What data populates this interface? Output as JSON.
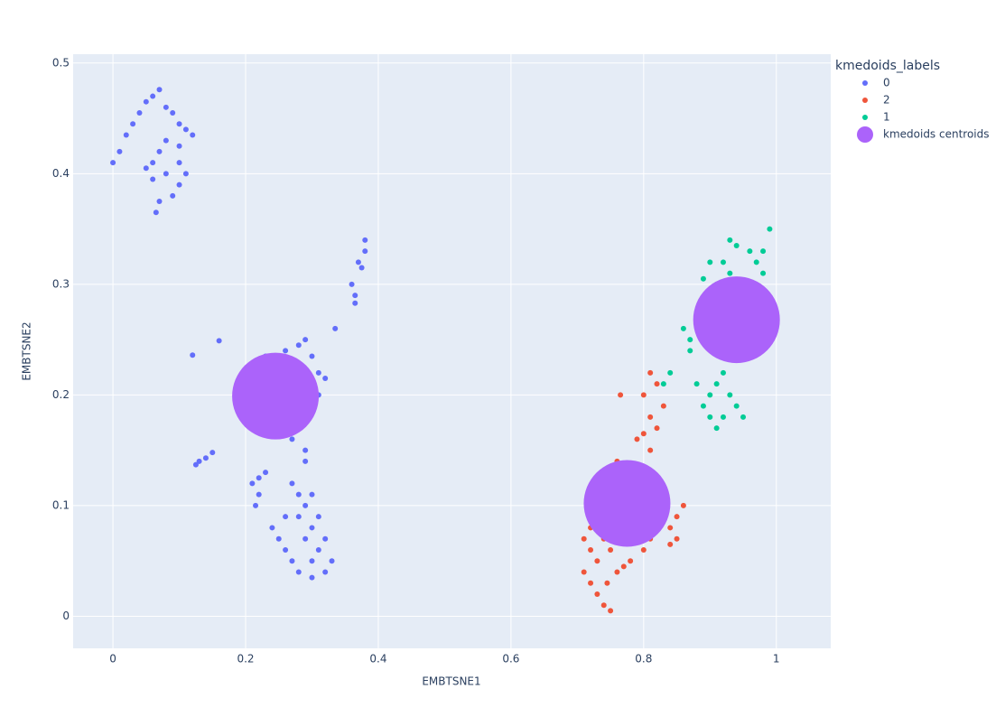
{
  "chart_data": {
    "type": "scatter",
    "xlabel": "EMBTSNE1",
    "ylabel": "EMBTSNE2",
    "legend_title": "kmedoids_labels",
    "legend": "right",
    "grid": true,
    "xlim": [
      -0.06,
      1.082
    ],
    "ylim": [
      -0.029,
      0.508
    ],
    "xticks": [
      0,
      0.2,
      0.4,
      0.6,
      0.8,
      1
    ],
    "yticks": [
      0,
      0.1,
      0.2,
      0.3,
      0.4,
      0.5
    ],
    "series": [
      {
        "name": "0",
        "color": "#636efa",
        "x": [
          0.0,
          0.01,
          0.02,
          0.03,
          0.04,
          0.05,
          0.06,
          0.07,
          0.08,
          0.09,
          0.1,
          0.11,
          0.12,
          0.1,
          0.08,
          0.07,
          0.06,
          0.05,
          0.06,
          0.08,
          0.1,
          0.11,
          0.1,
          0.09,
          0.07,
          0.065,
          0.37,
          0.38,
          0.38,
          0.375,
          0.36,
          0.365,
          0.365,
          0.335,
          0.12,
          0.16,
          0.19,
          0.2,
          0.21,
          0.205,
          0.22,
          0.23,
          0.24,
          0.23,
          0.25,
          0.26,
          0.28,
          0.29,
          0.3,
          0.31,
          0.32,
          0.31,
          0.3,
          0.29,
          0.28,
          0.27,
          0.26,
          0.28,
          0.3,
          0.29,
          0.29,
          0.13,
          0.14,
          0.15,
          0.125,
          0.21,
          0.22,
          0.23,
          0.215,
          0.22,
          0.27,
          0.28,
          0.29,
          0.3,
          0.31,
          0.24,
          0.25,
          0.26,
          0.27,
          0.28,
          0.3,
          0.32,
          0.33,
          0.31,
          0.29,
          0.3,
          0.28,
          0.32,
          0.26,
          0.3
        ],
        "y": [
          0.41,
          0.42,
          0.435,
          0.445,
          0.455,
          0.465,
          0.47,
          0.476,
          0.46,
          0.455,
          0.445,
          0.44,
          0.435,
          0.425,
          0.43,
          0.42,
          0.41,
          0.405,
          0.395,
          0.4,
          0.41,
          0.4,
          0.39,
          0.38,
          0.375,
          0.365,
          0.32,
          0.33,
          0.34,
          0.315,
          0.3,
          0.29,
          0.283,
          0.26,
          0.236,
          0.249,
          0.19,
          0.185,
          0.18,
          0.175,
          0.2,
          0.21,
          0.22,
          0.235,
          0.23,
          0.24,
          0.245,
          0.25,
          0.235,
          0.22,
          0.215,
          0.2,
          0.19,
          0.18,
          0.17,
          0.16,
          0.2,
          0.21,
          0.21,
          0.15,
          0.14,
          0.14,
          0.143,
          0.148,
          0.137,
          0.12,
          0.125,
          0.13,
          0.1,
          0.11,
          0.12,
          0.11,
          0.1,
          0.11,
          0.09,
          0.08,
          0.07,
          0.06,
          0.05,
          0.04,
          0.035,
          0.04,
          0.05,
          0.06,
          0.07,
          0.08,
          0.09,
          0.07,
          0.09,
          0.05
        ]
      },
      {
        "name": "2",
        "color": "#ef553b",
        "x": [
          0.81,
          0.82,
          0.8,
          0.83,
          0.81,
          0.82,
          0.8,
          0.79,
          0.81,
          0.765,
          0.76,
          0.75,
          0.74,
          0.76,
          0.77,
          0.75,
          0.73,
          0.72,
          0.71,
          0.72,
          0.71,
          0.72,
          0.73,
          0.74,
          0.75,
          0.745,
          0.76,
          0.73,
          0.75,
          0.74,
          0.8,
          0.81,
          0.82,
          0.8,
          0.81,
          0.79,
          0.78,
          0.77,
          0.84,
          0.85,
          0.86,
          0.85,
          0.84,
          0.83,
          0.82
        ],
        "y": [
          0.22,
          0.21,
          0.2,
          0.19,
          0.18,
          0.17,
          0.165,
          0.16,
          0.15,
          0.2,
          0.14,
          0.13,
          0.12,
          0.11,
          0.12,
          0.1,
          0.09,
          0.08,
          0.07,
          0.06,
          0.04,
          0.03,
          0.02,
          0.01,
          0.005,
          0.03,
          0.04,
          0.05,
          0.06,
          0.07,
          0.06,
          0.07,
          0.08,
          0.09,
          0.1,
          0.11,
          0.05,
          0.045,
          0.08,
          0.09,
          0.1,
          0.07,
          0.065,
          0.11,
          0.12
        ]
      },
      {
        "name": "1",
        "color": "#00cc96",
        "x": [
          0.84,
          0.83,
          0.9,
          0.91,
          0.92,
          0.93,
          0.9,
          0.91,
          0.92,
          0.94,
          0.95,
          0.89,
          0.88,
          0.87,
          0.86,
          0.87,
          0.9,
          0.91,
          0.92,
          0.93,
          0.94,
          0.96,
          0.97,
          0.98,
          0.99,
          0.98,
          0.97,
          0.96,
          0.95,
          0.94,
          0.93,
          0.92,
          0.95,
          0.93,
          0.91,
          0.9,
          0.92,
          0.89
        ],
        "y": [
          0.22,
          0.21,
          0.2,
          0.21,
          0.22,
          0.2,
          0.18,
          0.17,
          0.18,
          0.19,
          0.18,
          0.19,
          0.21,
          0.25,
          0.26,
          0.24,
          0.28,
          0.3,
          0.32,
          0.34,
          0.335,
          0.33,
          0.32,
          0.31,
          0.35,
          0.33,
          0.29,
          0.28,
          0.26,
          0.25,
          0.27,
          0.29,
          0.3,
          0.31,
          0.26,
          0.32,
          0.3,
          0.305
        ]
      },
      {
        "name": "kmedoids centroids",
        "color": "#ab63fa",
        "x": [
          0.245,
          0.775,
          0.94
        ],
        "y": [
          0.199,
          0.102,
          0.268
        ]
      }
    ]
  }
}
